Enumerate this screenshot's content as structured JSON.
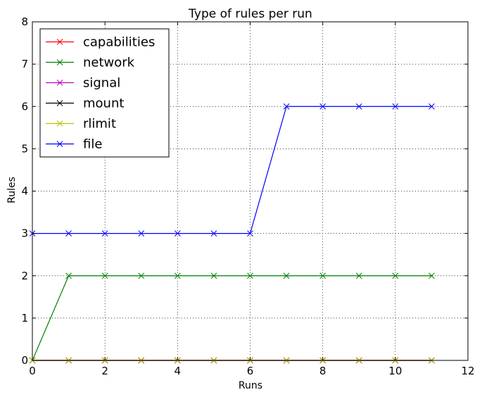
{
  "chart_data": {
    "type": "line",
    "title": "Type of rules per run",
    "xlabel": "Runs",
    "ylabel": "Rules",
    "xlim": [
      0,
      12
    ],
    "ylim": [
      0,
      8
    ],
    "xticks": [
      0,
      2,
      4,
      6,
      8,
      10,
      12
    ],
    "yticks": [
      0,
      1,
      2,
      3,
      4,
      5,
      6,
      7,
      8
    ],
    "grid": true,
    "legend_position": "top-left",
    "marker": "x",
    "x": [
      0,
      1,
      2,
      3,
      4,
      5,
      6,
      7,
      8,
      9,
      10,
      11
    ],
    "series": [
      {
        "name": "capabilities",
        "color": "#ff0000",
        "values": [
          0,
          0,
          0,
          0,
          0,
          0,
          0,
          0,
          0,
          0,
          0,
          0
        ]
      },
      {
        "name": "network",
        "color": "#008000",
        "values": [
          0,
          2,
          2,
          2,
          2,
          2,
          2,
          2,
          2,
          2,
          2,
          2
        ]
      },
      {
        "name": "signal",
        "color": "#bf00bf",
        "values": [
          0,
          0,
          0,
          0,
          0,
          0,
          0,
          0,
          0,
          0,
          0,
          0
        ]
      },
      {
        "name": "mount",
        "color": "#000000",
        "values": [
          0,
          0,
          0,
          0,
          0,
          0,
          0,
          0,
          0,
          0,
          0,
          0
        ]
      },
      {
        "name": "rlimit",
        "color": "#bfbf00",
        "values": [
          0,
          0,
          0,
          0,
          0,
          0,
          0,
          0,
          0,
          0,
          0,
          0
        ]
      },
      {
        "name": "file",
        "color": "#0000ff",
        "values": [
          3,
          3,
          3,
          3,
          3,
          3,
          3,
          6,
          6,
          6,
          6,
          6
        ]
      }
    ]
  }
}
